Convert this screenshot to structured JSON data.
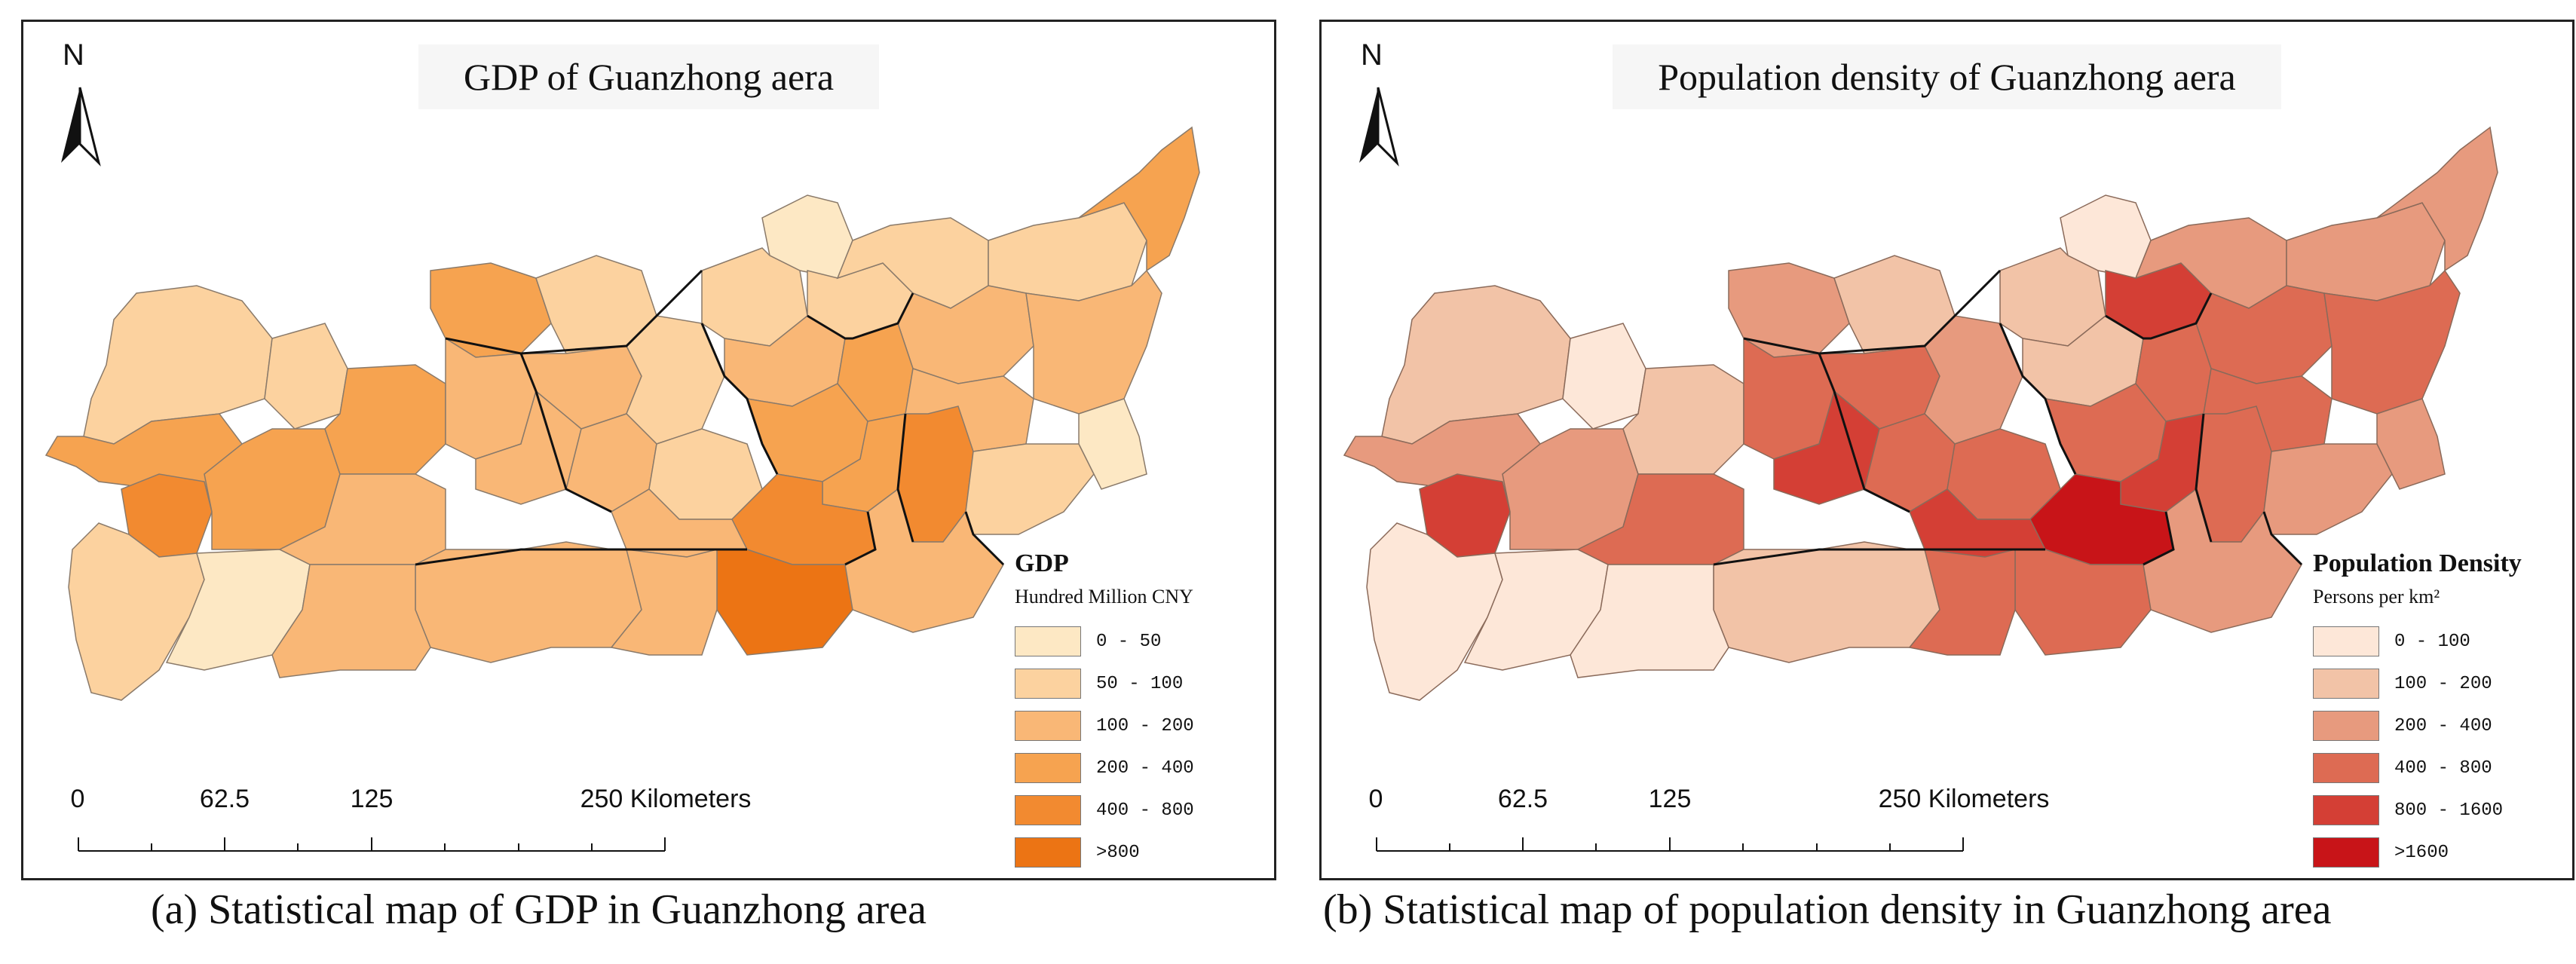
{
  "panels": [
    {
      "title": "GDP of Guanzhong aera",
      "legend": {
        "title": "GDP",
        "subtitle": "Hundred Million CNY",
        "items": [
          {
            "label": "0  -  50",
            "color": "#fde8c4"
          },
          {
            "label": "50  -  100",
            "color": "#fcd29f"
          },
          {
            "label": "100  -  200",
            "color": "#f9b776"
          },
          {
            "label": "200  -  400",
            "color": "#f6a350"
          },
          {
            "label": "400  -  800",
            "color": "#f28a30"
          },
          {
            "label": ">800",
            "color": "#ec7414"
          }
        ]
      },
      "caption": "(a) Statistical map of GDP in Guanzhong area"
    },
    {
      "title": "Population density of Guanzhong aera",
      "legend": {
        "title": "Population Density",
        "subtitle": "Persons per km²",
        "items": [
          {
            "label": "0  -  100",
            "color": "#fde7d8"
          },
          {
            "label": "100  -  200",
            "color": "#f2c3a7"
          },
          {
            "label": "200  -  400",
            "color": "#e79a7e"
          },
          {
            "label": "400  -  800",
            "color": "#dd6b53"
          },
          {
            "label": "800  -  1600",
            "color": "#d43f35"
          },
          {
            "label": ">1600",
            "color": "#c81418"
          }
        ]
      },
      "caption": "(b) Statistical map of population density in Guanzhong area"
    }
  ],
  "north_label": "N",
  "scale": {
    "ticks": [
      "0",
      "62.5",
      "125",
      "250 Kilometers"
    ]
  }
}
